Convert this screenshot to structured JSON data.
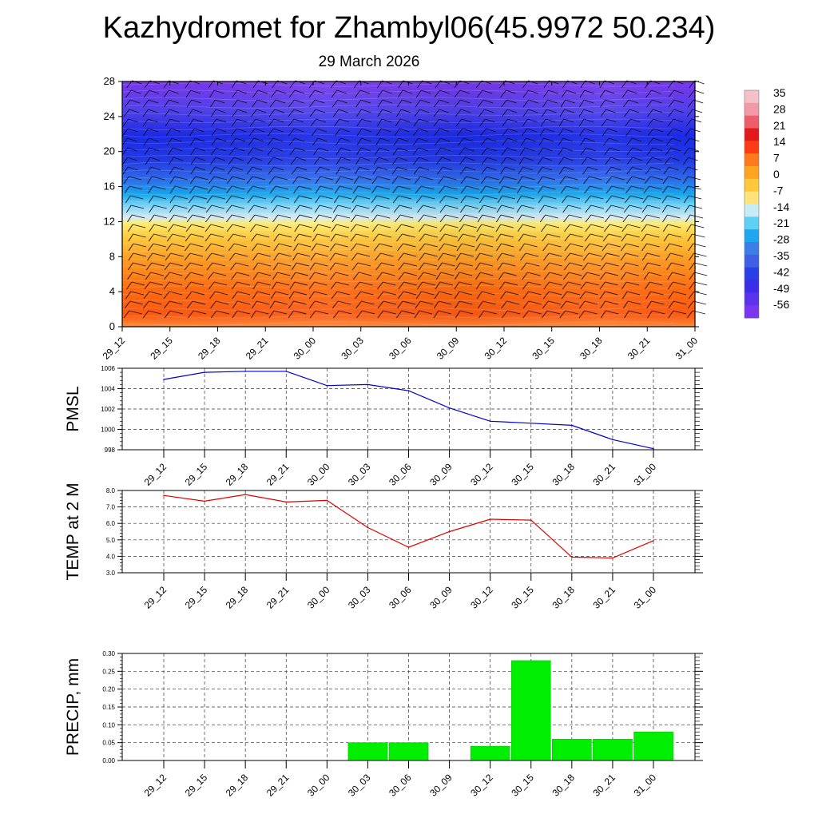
{
  "title": "Kazhydromet for Zhambyl06(45.9972 50.234)",
  "subtitle": "29 March 2026",
  "time_labels": [
    "29_12",
    "29_15",
    "29_18",
    "29_21",
    "30_00",
    "30_03",
    "30_06",
    "30_09",
    "30_12",
    "30_15",
    "30_18",
    "30_21",
    "31_00"
  ],
  "colorbar": {
    "labels": [
      "35",
      "28",
      "21",
      "14",
      "7",
      "0",
      "-7",
      "-14",
      "-21",
      "-28",
      "-35",
      "-42",
      "-49",
      "-56"
    ]
  },
  "chart_data": [
    {
      "type": "heatmap",
      "name": "temperature cross-section",
      "title": "",
      "ylabel": "",
      "yticks": [
        0,
        4,
        8,
        12,
        16,
        20,
        24,
        28
      ],
      "ylim": [
        0,
        28
      ],
      "x": [
        "29_12",
        "29_15",
        "29_18",
        "29_21",
        "30_00",
        "30_03",
        "30_06",
        "30_09",
        "30_12",
        "30_15",
        "30_18",
        "30_21",
        "31_00"
      ],
      "color_scale": [
        -56,
        35
      ],
      "overlay": "wind barbs"
    },
    {
      "type": "line",
      "ylabel": "PMSL",
      "ylim": [
        998,
        1006
      ],
      "yticks": [
        "998",
        "1000",
        "1002",
        "1004",
        "1006"
      ],
      "color": "#0000cc",
      "x": [
        "29_12",
        "29_15",
        "29_18",
        "29_21",
        "30_00",
        "30_03",
        "30_06",
        "30_09",
        "30_12",
        "30_15",
        "30_18",
        "30_21",
        "31_00"
      ],
      "values": [
        1004.9,
        1005.6,
        1005.7,
        1005.7,
        1004.3,
        1004.4,
        1003.8,
        1002.1,
        1000.8,
        1000.6,
        1000.4,
        999.0,
        998.1
      ],
      "grid": true
    },
    {
      "type": "line",
      "ylabel": "TEMP at 2 M",
      "ylim": [
        3.0,
        8.0
      ],
      "yticks": [
        "3.0",
        "4.0",
        "5.0",
        "6.0",
        "7.0",
        "8.0"
      ],
      "color": "#dd0000",
      "x": [
        "29_12",
        "29_15",
        "29_18",
        "29_21",
        "30_00",
        "30_03",
        "30_06",
        "30_09",
        "30_12",
        "30_15",
        "30_18",
        "30_21",
        "31_00"
      ],
      "values": [
        7.7,
        7.35,
        7.75,
        7.3,
        7.4,
        5.75,
        4.55,
        5.5,
        6.25,
        6.2,
        3.95,
        3.9,
        4.95
      ],
      "grid": true
    },
    {
      "type": "bar",
      "ylabel": "PRECIP, mm",
      "ylim": [
        0,
        0.3
      ],
      "yticks": [
        "0.00",
        "0.05",
        "0.10",
        "0.15",
        "0.20",
        "0.25",
        "0.30"
      ],
      "color": "#00ee00",
      "categories": [
        "29_12",
        "29_15",
        "29_18",
        "29_21",
        "30_00",
        "30_03",
        "30_06",
        "30_09",
        "30_12",
        "30_15",
        "30_18",
        "30_21",
        "31_00"
      ],
      "values": [
        0,
        0,
        0,
        0,
        0,
        0.05,
        0.05,
        0,
        0.04,
        0.28,
        0.06,
        0.06,
        0.08
      ],
      "grid": true
    }
  ]
}
